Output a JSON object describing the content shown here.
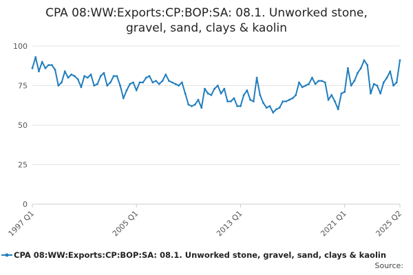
{
  "chart_data": {
    "type": "line",
    "title_line1": "CPA 08:WW:Exports:CP:BOP:SA: 08.1. Unworked stone,",
    "title_line2": "gravel, sand, clays & kaolin",
    "series": [
      {
        "name": "CPA 08:WW:Exports:CP:BOP:SA: 08.1. Unworked stone, gravel, sand, clays & kaolin",
        "color": "#1f7dbd",
        "start_year": 1997,
        "start_quarter": 1,
        "values": [
          86,
          93,
          84,
          90,
          86,
          88,
          88,
          85,
          75,
          77,
          84,
          80,
          82,
          81,
          79,
          74,
          81,
          80,
          82,
          75,
          76,
          81,
          83,
          75,
          77,
          81,
          81,
          75,
          67,
          72,
          76,
          77,
          72,
          77,
          77,
          80,
          81,
          77,
          78,
          76,
          78,
          82,
          78,
          77,
          76,
          75,
          77,
          70,
          63,
          62,
          63,
          66,
          61,
          73,
          70,
          69,
          73,
          75,
          70,
          73,
          65,
          65,
          67,
          62,
          62,
          69,
          72,
          66,
          65,
          80,
          69,
          64,
          61,
          62,
          58,
          60,
          61,
          65,
          65,
          66,
          67,
          69,
          77,
          74,
          75,
          76,
          80,
          76,
          78,
          78,
          77,
          66,
          69,
          65,
          60,
          70,
          71,
          86,
          75,
          78,
          83,
          86,
          91,
          88,
          70,
          76,
          75,
          70,
          77,
          80,
          84,
          75,
          77,
          91
        ]
      }
    ],
    "x_ticks": [
      "1997 Q1",
      "2005 Q1",
      "2013 Q1",
      "2021 Q1",
      "2025 Q2"
    ],
    "y_ticks": [
      0,
      25,
      50,
      75,
      100
    ],
    "ylim": [
      0,
      100
    ],
    "grid": "horizontal",
    "legend_position": "bottom"
  },
  "source_label": "Source:"
}
